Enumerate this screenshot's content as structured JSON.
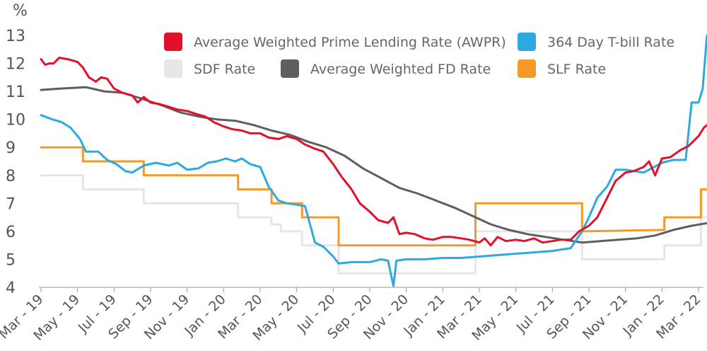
{
  "chart_data": {
    "type": "line",
    "unit_label": "%",
    "ylim": [
      4,
      13
    ],
    "y_ticks": [
      4,
      5,
      6,
      7,
      8,
      9,
      10,
      11,
      12,
      13
    ],
    "x_range": [
      "2019-03",
      "2022-03"
    ],
    "x_ticks": [
      "Mar - 19",
      "May - 19",
      "Jul - 19",
      "Sep - 19",
      "Nov - 19",
      "Jan - 20",
      "Mar - 20",
      "May - 20",
      "Jul - 20",
      "Sep - 20",
      "Nov - 20",
      "Jan - 21",
      "Mar - 21",
      "May - 21",
      "Jul - 21",
      "Sep - 21",
      "Nov - 21",
      "Jan - 22",
      "Mar - 22"
    ],
    "grid": false,
    "legend_position": "top-right",
    "series": [
      {
        "name": "Average Weighted Prime Lending Rate (AWPR)",
        "color": "#e3102c",
        "points": [
          [
            "2019-03-01",
            12.15
          ],
          [
            "2019-03-08",
            11.95
          ],
          [
            "2019-03-15",
            12.0
          ],
          [
            "2019-03-22",
            12.0
          ],
          [
            "2019-04-01",
            12.2
          ],
          [
            "2019-04-15",
            12.15
          ],
          [
            "2019-05-01",
            12.05
          ],
          [
            "2019-05-10",
            11.85
          ],
          [
            "2019-05-20",
            11.5
          ],
          [
            "2019-06-01",
            11.35
          ],
          [
            "2019-06-10",
            11.5
          ],
          [
            "2019-06-20",
            11.45
          ],
          [
            "2019-07-01",
            11.1
          ],
          [
            "2019-07-15",
            10.95
          ],
          [
            "2019-08-01",
            10.85
          ],
          [
            "2019-08-10",
            10.6
          ],
          [
            "2019-08-20",
            10.8
          ],
          [
            "2019-09-01",
            10.6
          ],
          [
            "2019-09-15",
            10.55
          ],
          [
            "2019-10-01",
            10.45
          ],
          [
            "2019-10-15",
            10.35
          ],
          [
            "2019-11-01",
            10.3
          ],
          [
            "2019-11-15",
            10.2
          ],
          [
            "2019-12-01",
            10.1
          ],
          [
            "2019-12-15",
            9.9
          ],
          [
            "2020-01-01",
            9.75
          ],
          [
            "2020-01-15",
            9.65
          ],
          [
            "2020-02-01",
            9.6
          ],
          [
            "2020-02-15",
            9.5
          ],
          [
            "2020-03-01",
            9.5
          ],
          [
            "2020-03-15",
            9.35
          ],
          [
            "2020-04-01",
            9.3
          ],
          [
            "2020-04-15",
            9.4
          ],
          [
            "2020-05-01",
            9.3
          ],
          [
            "2020-05-15",
            9.1
          ],
          [
            "2020-06-01",
            8.95
          ],
          [
            "2020-06-15",
            8.85
          ],
          [
            "2020-07-01",
            8.4
          ],
          [
            "2020-07-15",
            7.95
          ],
          [
            "2020-08-01",
            7.5
          ],
          [
            "2020-08-15",
            7.0
          ],
          [
            "2020-09-01",
            6.7
          ],
          [
            "2020-09-15",
            6.4
          ],
          [
            "2020-10-01",
            6.3
          ],
          [
            "2020-10-10",
            6.5
          ],
          [
            "2020-10-20",
            5.9
          ],
          [
            "2020-11-01",
            5.95
          ],
          [
            "2020-11-15",
            5.9
          ],
          [
            "2020-12-01",
            5.75
          ],
          [
            "2020-12-15",
            5.7
          ],
          [
            "2021-01-01",
            5.8
          ],
          [
            "2021-01-15",
            5.8
          ],
          [
            "2021-02-01",
            5.75
          ],
          [
            "2021-02-15",
            5.7
          ],
          [
            "2021-03-01",
            5.6
          ],
          [
            "2021-03-10",
            5.75
          ],
          [
            "2021-03-20",
            5.5
          ],
          [
            "2021-04-01",
            5.8
          ],
          [
            "2021-04-15",
            5.65
          ],
          [
            "2021-05-01",
            5.7
          ],
          [
            "2021-05-15",
            5.65
          ],
          [
            "2021-06-01",
            5.75
          ],
          [
            "2021-06-15",
            5.6
          ],
          [
            "2021-07-01",
            5.65
          ],
          [
            "2021-07-15",
            5.7
          ],
          [
            "2021-08-01",
            5.7
          ],
          [
            "2021-08-15",
            6.0
          ],
          [
            "2021-09-01",
            6.2
          ],
          [
            "2021-09-15",
            6.5
          ],
          [
            "2021-10-01",
            7.2
          ],
          [
            "2021-10-15",
            7.8
          ],
          [
            "2021-11-01",
            8.1
          ],
          [
            "2021-11-15",
            8.15
          ],
          [
            "2021-12-01",
            8.3
          ],
          [
            "2021-12-10",
            8.5
          ],
          [
            "2021-12-20",
            8.0
          ],
          [
            "2022-01-01",
            8.6
          ],
          [
            "2022-01-15",
            8.65
          ],
          [
            "2022-02-01",
            8.9
          ],
          [
            "2022-02-15",
            9.05
          ],
          [
            "2022-03-01",
            9.4
          ],
          [
            "2022-03-10",
            9.7
          ],
          [
            "2022-03-18",
            9.85
          ]
        ]
      },
      {
        "name": "364 Day T-bill Rate",
        "color": "#2ea9e0",
        "points": [
          [
            "2019-03-01",
            10.15
          ],
          [
            "2019-03-20",
            10.0
          ],
          [
            "2019-04-05",
            9.9
          ],
          [
            "2019-04-20",
            9.7
          ],
          [
            "2019-05-05",
            9.3
          ],
          [
            "2019-05-15",
            8.85
          ],
          [
            "2019-06-05",
            8.85
          ],
          [
            "2019-06-20",
            8.55
          ],
          [
            "2019-07-05",
            8.4
          ],
          [
            "2019-07-20",
            8.15
          ],
          [
            "2019-08-01",
            8.1
          ],
          [
            "2019-08-20",
            8.35
          ],
          [
            "2019-09-10",
            8.45
          ],
          [
            "2019-10-01",
            8.35
          ],
          [
            "2019-10-15",
            8.45
          ],
          [
            "2019-11-01",
            8.2
          ],
          [
            "2019-11-20",
            8.25
          ],
          [
            "2019-12-05",
            8.45
          ],
          [
            "2019-12-20",
            8.5
          ],
          [
            "2020-01-05",
            8.6
          ],
          [
            "2020-01-20",
            8.5
          ],
          [
            "2020-02-01",
            8.6
          ],
          [
            "2020-02-15",
            8.4
          ],
          [
            "2020-03-01",
            8.3
          ],
          [
            "2020-03-15",
            7.6
          ],
          [
            "2020-04-01",
            7.1
          ],
          [
            "2020-04-15",
            7.0
          ],
          [
            "2020-05-01",
            6.95
          ],
          [
            "2020-05-15",
            6.9
          ],
          [
            "2020-06-01",
            5.6
          ],
          [
            "2020-06-15",
            5.45
          ],
          [
            "2020-07-01",
            5.1
          ],
          [
            "2020-07-10",
            4.85
          ],
          [
            "2020-08-01",
            4.9
          ],
          [
            "2020-09-01",
            4.9
          ],
          [
            "2020-09-20",
            5.0
          ],
          [
            "2020-10-01",
            4.95
          ],
          [
            "2020-10-10",
            4.05
          ],
          [
            "2020-10-15",
            4.95
          ],
          [
            "2020-11-01",
            5.0
          ],
          [
            "2020-12-01",
            5.0
          ],
          [
            "2021-01-01",
            5.05
          ],
          [
            "2021-02-01",
            5.05
          ],
          [
            "2021-03-01",
            5.1
          ],
          [
            "2021-04-01",
            5.15
          ],
          [
            "2021-05-01",
            5.2
          ],
          [
            "2021-06-01",
            5.25
          ],
          [
            "2021-07-01",
            5.3
          ],
          [
            "2021-08-01",
            5.4
          ],
          [
            "2021-08-20",
            6.0
          ],
          [
            "2021-09-01",
            6.5
          ],
          [
            "2021-09-15",
            7.2
          ],
          [
            "2021-10-01",
            7.6
          ],
          [
            "2021-10-15",
            8.2
          ],
          [
            "2021-11-01",
            8.2
          ],
          [
            "2021-12-01",
            8.1
          ],
          [
            "2022-01-01",
            8.45
          ],
          [
            "2022-01-20",
            8.55
          ],
          [
            "2022-02-10",
            8.55
          ],
          [
            "2022-02-20",
            10.6
          ],
          [
            "2022-03-01",
            10.6
          ],
          [
            "2022-03-08",
            11.1
          ],
          [
            "2022-03-15",
            13.0
          ]
        ]
      },
      {
        "name": "SDF Rate",
        "color": "#e6e6e6",
        "points": [
          [
            "2019-03-01",
            8.0
          ],
          [
            "2019-05-10",
            8.0
          ],
          [
            "2019-05-10",
            7.5
          ],
          [
            "2019-08-20",
            7.5
          ],
          [
            "2019-08-20",
            7.0
          ],
          [
            "2020-01-25",
            7.0
          ],
          [
            "2020-01-25",
            6.5
          ],
          [
            "2020-03-20",
            6.5
          ],
          [
            "2020-03-20",
            6.25
          ],
          [
            "2020-04-05",
            6.25
          ],
          [
            "2020-04-05",
            6.0
          ],
          [
            "2020-05-10",
            6.0
          ],
          [
            "2020-05-10",
            5.5
          ],
          [
            "2020-07-10",
            5.5
          ],
          [
            "2020-07-10",
            4.5
          ],
          [
            "2021-02-25",
            4.5
          ],
          [
            "2021-02-25",
            6.0
          ],
          [
            "2021-08-20",
            6.0
          ],
          [
            "2021-08-20",
            5.0
          ],
          [
            "2022-01-05",
            5.0
          ],
          [
            "2022-01-05",
            5.5
          ],
          [
            "2022-03-05",
            5.5
          ],
          [
            "2022-03-05",
            6.5
          ],
          [
            "2022-03-18",
            6.5
          ]
        ]
      },
      {
        "name": "Average Weighted FD Rate",
        "color": "#5e5e5e",
        "points": [
          [
            "2019-03-01",
            11.05
          ],
          [
            "2019-04-01",
            11.1
          ],
          [
            "2019-05-15",
            11.15
          ],
          [
            "2019-06-15",
            11.0
          ],
          [
            "2019-07-15",
            10.95
          ],
          [
            "2019-08-15",
            10.75
          ],
          [
            "2019-09-20",
            10.5
          ],
          [
            "2019-10-20",
            10.25
          ],
          [
            "2019-11-20",
            10.1
          ],
          [
            "2019-12-20",
            10.0
          ],
          [
            "2020-01-20",
            9.95
          ],
          [
            "2020-02-20",
            9.8
          ],
          [
            "2020-03-20",
            9.6
          ],
          [
            "2020-04-20",
            9.45
          ],
          [
            "2020-05-20",
            9.2
          ],
          [
            "2020-06-20",
            9.0
          ],
          [
            "2020-07-20",
            8.7
          ],
          [
            "2020-08-20",
            8.25
          ],
          [
            "2020-09-20",
            7.9
          ],
          [
            "2020-10-20",
            7.55
          ],
          [
            "2020-11-20",
            7.35
          ],
          [
            "2020-12-20",
            7.1
          ],
          [
            "2021-01-20",
            6.85
          ],
          [
            "2021-02-20",
            6.55
          ],
          [
            "2021-03-20",
            6.25
          ],
          [
            "2021-04-20",
            6.05
          ],
          [
            "2021-05-20",
            5.9
          ],
          [
            "2021-06-20",
            5.8
          ],
          [
            "2021-07-20",
            5.7
          ],
          [
            "2021-08-20",
            5.6
          ],
          [
            "2021-09-20",
            5.65
          ],
          [
            "2021-10-20",
            5.7
          ],
          [
            "2021-11-20",
            5.75
          ],
          [
            "2021-12-20",
            5.85
          ],
          [
            "2022-01-20",
            6.05
          ],
          [
            "2022-02-20",
            6.2
          ],
          [
            "2022-03-18",
            6.3
          ]
        ]
      },
      {
        "name": "SLF Rate",
        "color": "#f39a28",
        "points": [
          [
            "2019-03-01",
            9.0
          ],
          [
            "2019-05-10",
            9.0
          ],
          [
            "2019-05-10",
            8.5
          ],
          [
            "2019-08-20",
            8.5
          ],
          [
            "2019-08-20",
            8.0
          ],
          [
            "2020-01-25",
            8.0
          ],
          [
            "2020-01-25",
            7.5
          ],
          [
            "2020-03-20",
            7.5
          ],
          [
            "2020-03-20",
            7.0
          ],
          [
            "2020-05-10",
            7.0
          ],
          [
            "2020-05-10",
            6.5
          ],
          [
            "2020-07-10",
            6.5
          ],
          [
            "2020-07-10",
            5.5
          ],
          [
            "2021-02-25",
            5.5
          ],
          [
            "2021-02-25",
            7.0
          ],
          [
            "2021-08-20",
            7.0
          ],
          [
            "2021-08-20",
            6.0
          ],
          [
            "2022-01-05",
            6.05
          ],
          [
            "2022-01-05",
            6.5
          ],
          [
            "2022-03-05",
            6.5
          ],
          [
            "2022-03-05",
            7.5
          ],
          [
            "2022-03-18",
            7.5
          ]
        ]
      }
    ]
  }
}
